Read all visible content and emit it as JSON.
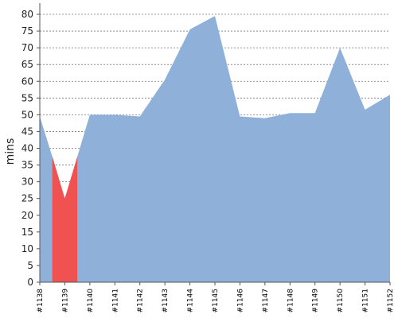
{
  "chart_data": {
    "type": "area",
    "title": "",
    "xlabel": "",
    "ylabel": "mins",
    "ylim": [
      0,
      80
    ],
    "yticks": [
      0,
      5,
      10,
      15,
      20,
      25,
      30,
      35,
      40,
      45,
      50,
      55,
      60,
      65,
      70,
      75,
      80
    ],
    "grid": "horizontal-dashed",
    "categories": [
      "#1138",
      "#1139",
      "#1140",
      "#1141",
      "#1142",
      "#1143",
      "#1144",
      "#1145",
      "#1146",
      "#1147",
      "#1148",
      "#1149",
      "#1150",
      "#1151",
      "#1152"
    ],
    "x": [
      1138,
      1138.5,
      1139,
      1139.5,
      1140,
      1141,
      1142,
      1143,
      1144,
      1145,
      1146,
      1147,
      1148,
      1149,
      1150,
      1151,
      1152
    ],
    "values": [
      49.5,
      37.5,
      25,
      37.5,
      50,
      50,
      49.5,
      60.5,
      75.5,
      79.5,
      49.5,
      49,
      50.5,
      50.5,
      70,
      51.5,
      56
    ],
    "failed_range": [
      1138.5,
      1139.5
    ],
    "colors": {
      "area": "#8fb1d9",
      "failed": "#f05151",
      "grid": "#777777",
      "axis": "#555555"
    }
  }
}
